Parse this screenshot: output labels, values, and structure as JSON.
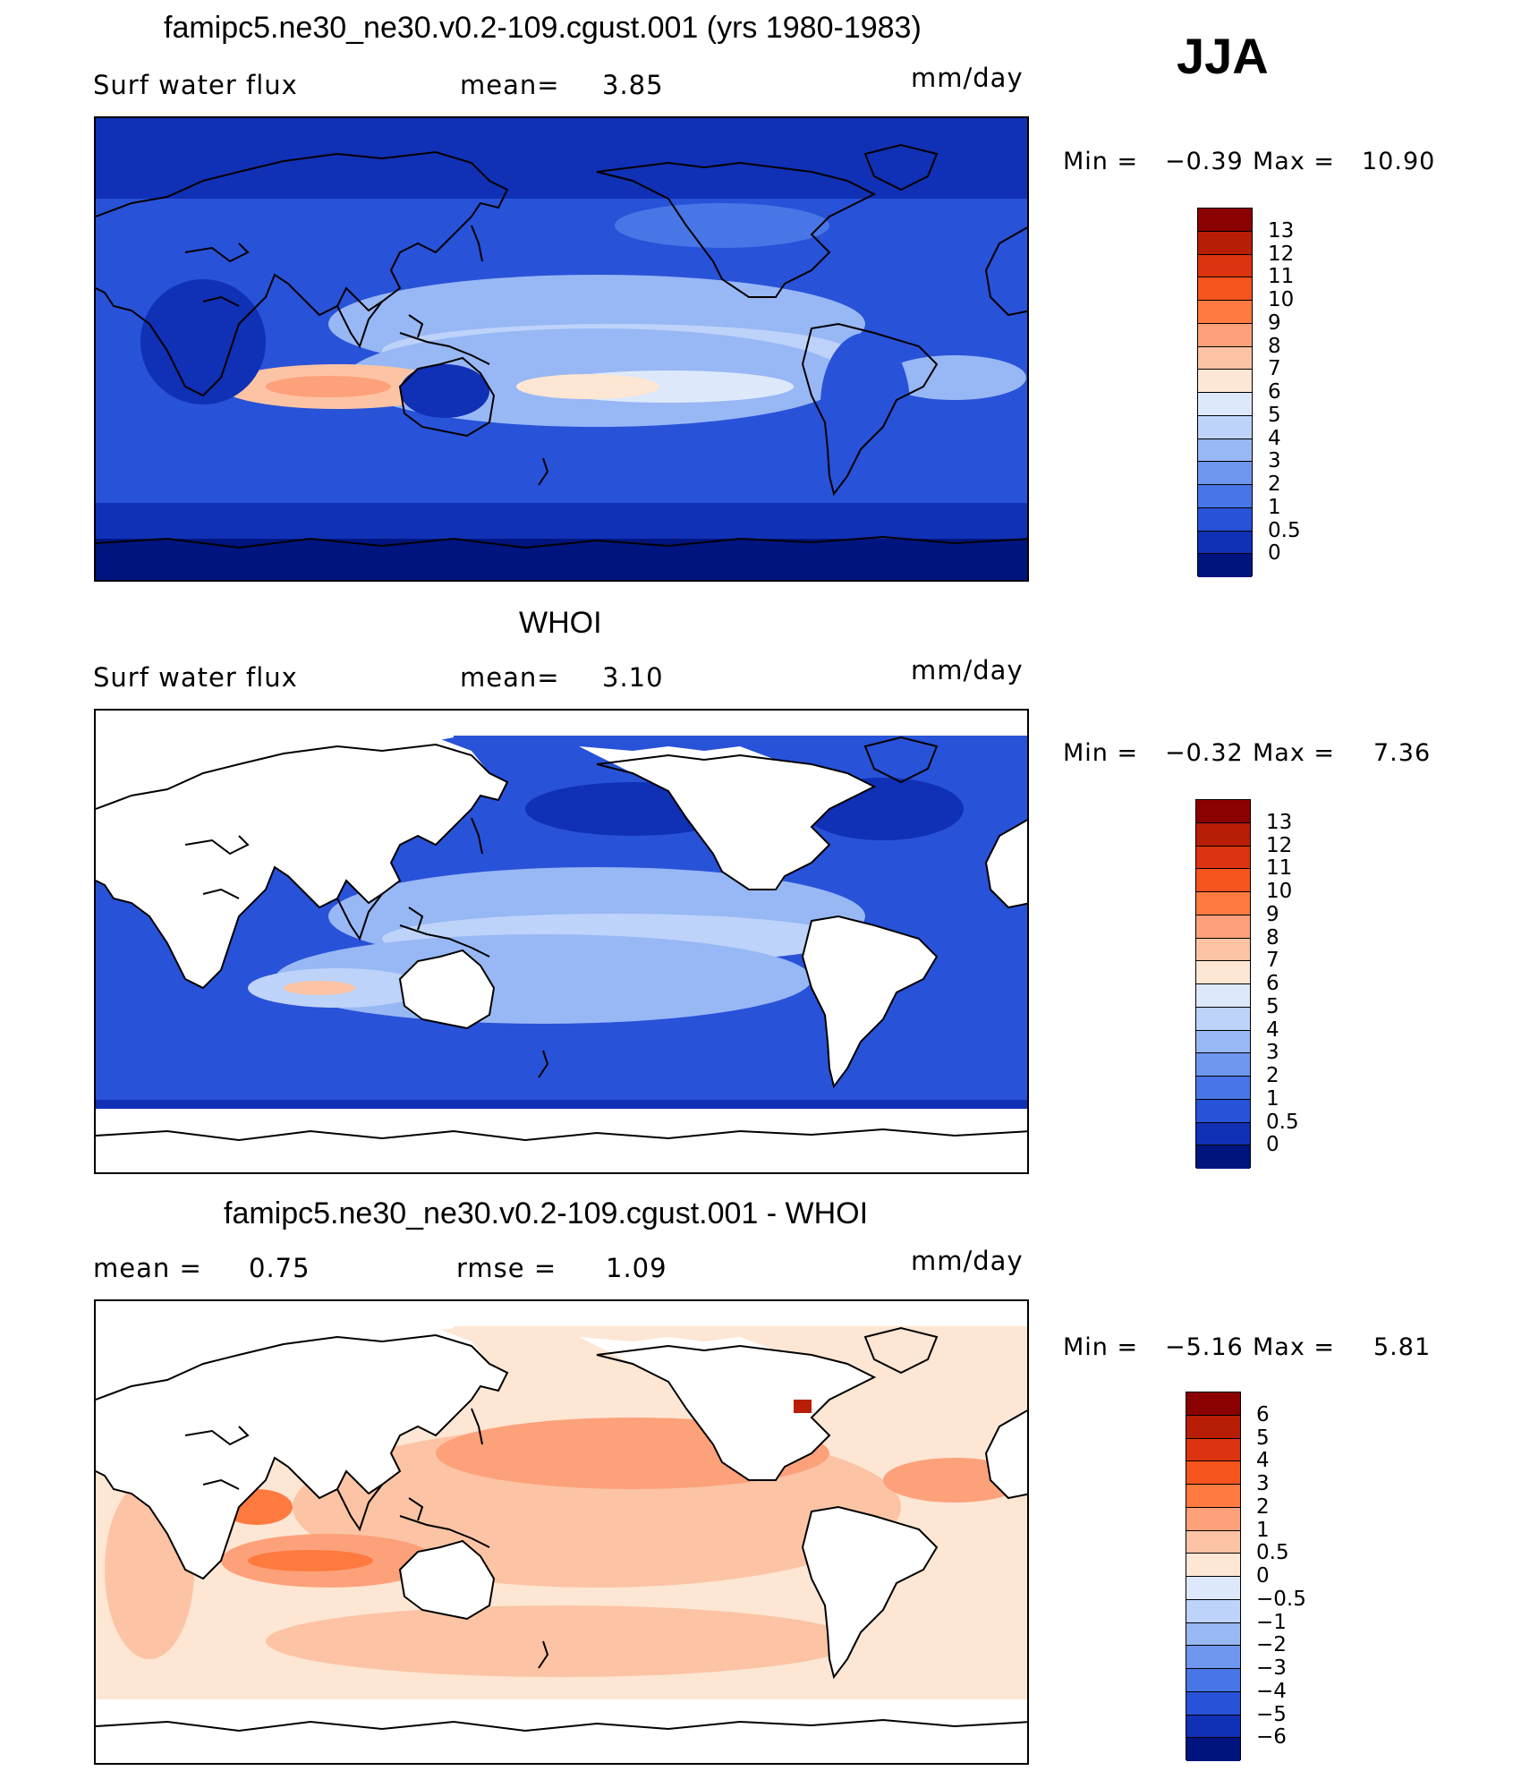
{
  "season": "JJA",
  "panels": [
    {
      "title": "famipc5.ne30_ne30.v0.2-109.cgust.001 (yrs 1980-1983)",
      "left_label": "Surf water flux",
      "center_label": "mean=",
      "center_value": "3.85",
      "units": "mm/day",
      "min_label": "Min =",
      "min_value": "−0.39",
      "max_label": "Max =",
      "max_value": "10.90",
      "colorbar_levels": [
        "13",
        "12",
        "11",
        "10",
        "9",
        "8",
        "7",
        "6",
        "5",
        "4",
        "3",
        "2",
        "1",
        "0.5",
        "0"
      ],
      "colorbar_colors": [
        "#8b0000",
        "#b81d05",
        "#dc3410",
        "#f5541d",
        "#ff7a3f",
        "#fda17a",
        "#fcc4a4",
        "#fde6d3",
        "#dde9fb",
        "#bdd3fa",
        "#98b7f5",
        "#6f96ee",
        "#4876e6",
        "#2852d8",
        "#1030b5",
        "#00147f"
      ]
    },
    {
      "title": "WHOI",
      "left_label": "Surf water flux",
      "center_label": "mean=",
      "center_value": "3.10",
      "units": "mm/day",
      "min_label": "Min =",
      "min_value": "−0.32",
      "max_label": "Max =",
      "max_value": "7.36",
      "colorbar_levels": [
        "13",
        "12",
        "11",
        "10",
        "9",
        "8",
        "7",
        "6",
        "5",
        "4",
        "3",
        "2",
        "1",
        "0.5",
        "0"
      ],
      "colorbar_colors": [
        "#8b0000",
        "#b81d05",
        "#dc3410",
        "#f5541d",
        "#ff7a3f",
        "#fda17a",
        "#fcc4a4",
        "#fde6d3",
        "#dde9fb",
        "#bdd3fa",
        "#98b7f5",
        "#6f96ee",
        "#4876e6",
        "#2852d8",
        "#1030b5",
        "#00147f"
      ]
    },
    {
      "title": "famipc5.ne30_ne30.v0.2-109.cgust.001 - WHOI",
      "left_label": "mean =",
      "left_value": "0.75",
      "center_label": "rmse =",
      "center_value": "1.09",
      "units": "mm/day",
      "min_label": "Min =",
      "min_value": "−5.16",
      "max_label": "Max =",
      "max_value": "5.81",
      "colorbar_levels": [
        "6",
        "5",
        "4",
        "3",
        "2",
        "1",
        "0.5",
        "0",
        "−0.5",
        "−1",
        "−2",
        "−3",
        "−4",
        "−5",
        "−6"
      ],
      "colorbar_colors": [
        "#8b0000",
        "#b81d05",
        "#dc3410",
        "#f5541d",
        "#ff7a3f",
        "#fda17a",
        "#fcc4a4",
        "#fde6d3",
        "#dde9fb",
        "#bdd3fa",
        "#98b7f5",
        "#6f96ee",
        "#4876e6",
        "#2852d8",
        "#1030b5",
        "#00147f"
      ]
    }
  ]
}
